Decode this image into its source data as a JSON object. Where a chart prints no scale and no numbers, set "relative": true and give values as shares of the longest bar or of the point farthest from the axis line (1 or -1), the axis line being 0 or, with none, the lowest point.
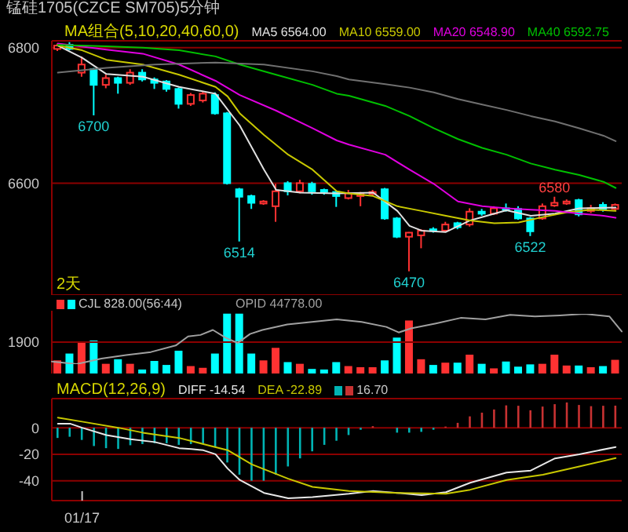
{
  "chart_data": [
    {
      "type": "candlestick",
      "title": "锰硅1705(CZCE SM705)5分钟",
      "legend_title": "MA组合(5,10,20,40,60,0)",
      "legend": "top",
      "grid": "y",
      "tick_labels": "y",
      "categories": [
        null,
        null,
        null,
        null,
        null,
        null,
        null,
        null,
        null,
        null,
        null,
        null,
        null,
        null,
        null,
        null,
        null,
        null,
        null,
        null,
        null,
        null,
        null,
        null,
        null,
        null,
        null,
        null,
        null,
        null,
        null,
        null,
        null,
        null,
        null,
        null,
        null,
        null,
        null,
        null,
        null,
        null,
        null,
        null,
        null,
        null,
        null
      ],
      "ylim": [
        6435,
        6810
      ],
      "yticks": [
        6600,
        6800
      ],
      "ohlc": [
        [
          6798,
          6806,
          6795,
          6803
        ],
        [
          6804,
          6808,
          6796,
          6798
        ],
        [
          6763,
          6787,
          6757,
          6775
        ],
        [
          6768,
          6770,
          6700,
          6745
        ],
        [
          6745,
          6760,
          6740,
          6755
        ],
        [
          6755,
          6757,
          6732,
          6748
        ],
        [
          6748,
          6768,
          6745,
          6763
        ],
        [
          6763,
          6768,
          6750,
          6753
        ],
        [
          6753,
          6756,
          6739,
          6748
        ],
        [
          6750,
          6752,
          6735,
          6739
        ],
        [
          6739,
          6741,
          6710,
          6717
        ],
        [
          6717,
          6733,
          6714,
          6730
        ],
        [
          6722,
          6736,
          6719,
          6732
        ],
        [
          6730,
          6734,
          6701,
          6703
        ],
        [
          6703,
          6705,
          6598,
          6600
        ],
        [
          6591,
          6593,
          6514,
          6580
        ],
        [
          6581,
          6583,
          6562,
          6571
        ],
        [
          6570,
          6575,
          6568,
          6573
        ],
        [
          6566,
          6599,
          6543,
          6588
        ],
        [
          6600,
          6603,
          6582,
          6588
        ],
        [
          6588,
          6605,
          6585,
          6600
        ],
        [
          6599,
          6602,
          6583,
          6588
        ],
        [
          6590,
          6592,
          6583,
          6587
        ],
        [
          6587,
          6589,
          6565,
          6581
        ],
        [
          6578,
          6590,
          6576,
          6585
        ],
        [
          6581,
          6587,
          6566,
          6585
        ],
        [
          6584,
          6590,
          6582,
          6587
        ],
        [
          6591,
          6593,
          6546,
          6548
        ],
        [
          6548,
          6550,
          6519,
          6521
        ],
        [
          6521,
          6528,
          6470,
          6527
        ],
        [
          6523,
          6532,
          6504,
          6530
        ],
        [
          6532,
          6535,
          6527,
          6530
        ],
        [
          6530,
          6543,
          6528,
          6539
        ],
        [
          6541,
          6543,
          6532,
          6535
        ],
        [
          6539,
          6563,
          6536,
          6558
        ],
        [
          6558,
          6562,
          6552,
          6555
        ],
        [
          6555,
          6566,
          6553,
          6563
        ],
        [
          6563,
          6570,
          6558,
          6561
        ],
        [
          6562,
          6566,
          6546,
          6548
        ],
        [
          6548,
          6550,
          6522,
          6529
        ],
        [
          6548,
          6570,
          6546,
          6566
        ],
        [
          6567,
          6580,
          6565,
          6571
        ],
        [
          6570,
          6576,
          6568,
          6573
        ],
        [
          6575,
          6577,
          6551,
          6554
        ],
        [
          6559,
          6568,
          6556,
          6563
        ],
        [
          6568,
          6572,
          6558,
          6562
        ],
        [
          6562,
          6570,
          6560,
          6568
        ]
      ],
      "colors": [
        "#ff3232",
        "#00ffff",
        "#ff3232",
        "#00ffff",
        "#ff3232",
        "#00ffff",
        "#ff3232",
        "#00ffff",
        "#00ffff",
        "#00ffff",
        "#00ffff",
        "#ff3232",
        "#ff3232",
        "#00ffff",
        "#00ffff",
        "#00ffff",
        "#00ffff",
        "#ff3232",
        "#ff3232",
        "#00ffff",
        "#ff3232",
        "#00ffff",
        "#00ffff",
        "#00ffff",
        "#ff3232",
        "#ff3232",
        "#ff3232",
        "#00ffff",
        "#00ffff",
        "#ff3232",
        "#ff3232",
        "#00ffff",
        "#ff3232",
        "#00ffff",
        "#ff3232",
        "#00ffff",
        "#ff3232",
        "#00ffff",
        "#00ffff",
        "#00ffff",
        "#ff3232",
        "#ff3232",
        "#ff3232",
        "#00ffff",
        "#ff3232",
        "#00ffff",
        "#ff3232"
      ],
      "series": [
        {
          "type": "line",
          "name": "MA5 6564.00",
          "color": "#e0e0e0",
          "values": [
            6803,
            null,
            6785,
            null,
            6761,
            null,
            null,
            6757,
            null,
            null,
            6742,
            null,
            null,
            6732,
            null,
            6685,
            null,
            6620,
            6590,
            null,
            6586,
            null,
            null,
            6585,
            null,
            null,
            6586,
            null,
            6559,
            6537,
            6530,
            null,
            6528,
            null,
            6545,
            null,
            6555,
            6560,
            null,
            6552,
            null,
            6555,
            null,
            6563,
            null,
            null,
            6564
          ]
        },
        {
          "type": "line",
          "name": "MA10 6559.00",
          "color": "#c8c800",
          "values": [
            6803,
            null,
            6796,
            null,
            6782,
            null,
            null,
            6775,
            null,
            null,
            6760,
            null,
            null,
            6742,
            6728,
            6703,
            null,
            6671,
            null,
            6642,
            null,
            6620,
            null,
            6588,
            6585,
            null,
            6581,
            null,
            6566,
            null,
            6559,
            null,
            6552,
            null,
            6545,
            null,
            6541,
            null,
            6542,
            null,
            6550,
            null,
            6557,
            null,
            6561,
            null,
            6559
          ]
        },
        {
          "type": "line",
          "name": "MA20 6548.90",
          "color": "#e000e0",
          "values": [
            6806,
            null,
            null,
            null,
            6797,
            null,
            null,
            6791,
            null,
            null,
            6775,
            null,
            null,
            6751,
            null,
            6730,
            null,
            null,
            6707,
            null,
            null,
            6681,
            null,
            6663,
            6657,
            null,
            null,
            6642,
            null,
            6620,
            null,
            6599,
            null,
            6573,
            null,
            6566,
            null,
            6563,
            null,
            6561,
            null,
            6559,
            null,
            6555,
            null,
            6552,
            6549
          ]
        },
        {
          "type": "line",
          "name": "MA40 6592.75",
          "color": "#00c000",
          "values": [
            6804,
            null,
            null,
            null,
            6802,
            null,
            null,
            6800,
            null,
            null,
            6796,
            null,
            null,
            6787,
            null,
            6775,
            null,
            null,
            6760,
            null,
            null,
            6745,
            null,
            6732,
            6729,
            null,
            null,
            6714,
            null,
            6699,
            null,
            6681,
            null,
            6665,
            null,
            6652,
            null,
            6642,
            null,
            6629,
            null,
            6620,
            null,
            6612,
            null,
            6602,
            6593
          ]
        },
        {
          "type": "line",
          "color": "#707070",
          "values": [
            6763,
            null,
            null,
            null,
            6770,
            null,
            null,
            null,
            6775,
            null,
            null,
            null,
            null,
            6778,
            null,
            null,
            null,
            6775,
            null,
            null,
            null,
            6765,
            null,
            6758,
            6753,
            null,
            null,
            6746,
            null,
            6741,
            null,
            6734,
            null,
            6724,
            null,
            6716,
            null,
            6708,
            null,
            6699,
            null,
            6691,
            null,
            6681,
            null,
            6670,
            6662
          ]
        }
      ],
      "annotations": [
        {
          "text": "6700",
          "y": 6700
        },
        {
          "text": "6514",
          "y": 6514
        },
        {
          "text": "6470",
          "y": 6470
        },
        {
          "text": "6522",
          "y": 6522
        },
        {
          "text": "6580",
          "y": 6580
        },
        "2天"
      ]
    },
    {
      "type": "bar",
      "legend": "top left",
      "tick_labels": "y",
      "ref_lines": [
        {
          "axis": "y",
          "value": 1900,
          "color": "#8b0000"
        }
      ],
      "categories": [
        null,
        null,
        null,
        null,
        null,
        null,
        null,
        null,
        null,
        null,
        null,
        null,
        null,
        null,
        null,
        null,
        null,
        null,
        null,
        null,
        null,
        null,
        null,
        null,
        null,
        null,
        null,
        null,
        null,
        null,
        null,
        null,
        null,
        null,
        null,
        null,
        null,
        null,
        null,
        null,
        null,
        null,
        null,
        null,
        null,
        null,
        null
      ],
      "ylim": [
        0,
        3800
      ],
      "yticks": [
        1900
      ],
      "series": [
        {
          "name": "CJL 828.00(56:44)",
          "colors": [
            "#ff3232",
            "#00ffff",
            "#ff3232",
            "#00ffff",
            "#ff3232",
            "#00ffff",
            "#ff3232",
            "#00ffff",
            "#00ffff",
            "#00ffff",
            "#00ffff",
            "#ff3232",
            "#ff3232",
            "#00ffff",
            "#00ffff",
            "#00ffff",
            "#00ffff",
            "#ff3232",
            "#ff3232",
            "#00ffff",
            "#ff3232",
            "#00ffff",
            "#00ffff",
            "#00ffff",
            "#ff3232",
            "#ff3232",
            "#ff3232",
            "#00ffff",
            "#00ffff",
            "#ff3232",
            "#ff3232",
            "#00ffff",
            "#ff3232",
            "#00ffff",
            "#ff3232",
            "#00ffff",
            "#ff3232",
            "#00ffff",
            "#00ffff",
            "#00ffff",
            "#ff3232",
            "#ff3232",
            "#ff3232",
            "#00ffff",
            "#ff3232",
            "#00ffff",
            "#ff3232"
          ],
          "values": [
            794,
            1208,
            1900,
            2000,
            587,
            863,
            587,
            242,
            759,
            518,
            1380,
            449,
            345,
            1208,
            3623,
            3623,
            1208,
            794,
            1553,
            690,
            587,
            276,
            242,
            690,
            449,
            380,
            380,
            794,
            2174,
            3209,
            863,
            518,
            656,
            656,
            1139,
            587,
            311,
            725,
            414,
            552,
            587,
            1139,
            483,
            483,
            380,
            449,
            828
          ]
        }
      ]
    },
    {
      "type": "line",
      "relative": true,
      "legend": "top left",
      "tick_labels": false,
      "categories": [
        null,
        null,
        null,
        null,
        null,
        null,
        null,
        null,
        null,
        null,
        null,
        null,
        null,
        null,
        null,
        null,
        null,
        null,
        null,
        null,
        null,
        null,
        null,
        null,
        null,
        null,
        null,
        null,
        null,
        null,
        null,
        null,
        null,
        null,
        null,
        null,
        null,
        null,
        null,
        null,
        null,
        null,
        null,
        null,
        null,
        null,
        null
      ],
      "series": [
        {
          "name": "OPID 44778.00",
          "color": "#a0a0a0",
          "values": [
            0.05,
            null,
            0,
            null,
            0.11,
            null,
            0.18,
            null,
            0.24,
            null,
            0.37,
            0.55,
            0.58,
            0.68,
            0.53,
            0.42,
            0.6,
            0.68,
            null,
            0.79,
            null,
            0.84,
            null,
            0.89,
            null,
            0.84,
            null,
            0.74,
            0.63,
            0.71,
            null,
            0.81,
            null,
            0.92,
            null,
            0.89,
            null,
            0.98,
            null,
            0.95,
            null,
            0.97,
            null,
            1,
            null,
            0.95,
            0.65
          ]
        }
      ]
    },
    {
      "type": "bar",
      "legend_title": "MACD(12,26,9)",
      "legend": "top left",
      "grid": "y",
      "categories": [
        null,
        null,
        "01/17",
        null,
        null,
        null,
        null,
        null,
        null,
        null,
        null,
        null,
        null,
        null,
        null,
        null,
        null,
        null,
        null,
        null,
        null,
        null,
        null,
        null,
        null,
        null,
        null,
        null,
        null,
        null,
        null,
        null,
        null,
        null,
        null,
        null,
        null,
        null,
        null,
        null,
        null,
        null,
        null,
        null,
        null,
        null,
        null
      ],
      "ylim": [
        -55,
        22
      ],
      "yticks": [
        -40,
        -20,
        0
      ],
      "series": [
        {
          "type": "line",
          "name": "DIFF -14.54",
          "color": "#e8e8e8",
          "values": [
            3.1,
            3.1,
            0,
            null,
            -5.5,
            null,
            -8.6,
            null,
            -10.8,
            null,
            -15.4,
            -16,
            -17,
            -20,
            -30.8,
            -39.4,
            null,
            -49.2,
            null,
            -53.2,
            null,
            -52.3,
            null,
            null,
            -49.8,
            null,
            -47.7,
            null,
            -49.2,
            null,
            -50.8,
            null,
            -48.6,
            null,
            -41.5,
            null,
            null,
            -33.8,
            null,
            -32.3,
            null,
            -23.1,
            null,
            -20,
            null,
            null,
            -14.54
          ]
        },
        {
          "type": "line",
          "name": "DEA -22.89",
          "color": "#c8c800",
          "values": [
            7.7,
            null,
            4.6,
            null,
            null,
            0,
            null,
            -3.7,
            null,
            null,
            -7.7,
            null,
            -12.3,
            null,
            -16.9,
            null,
            -27.7,
            null,
            null,
            -38.5,
            null,
            -44.6,
            null,
            null,
            -47.7,
            null,
            null,
            null,
            -49.2,
            null,
            null,
            null,
            -49.8,
            null,
            -46.8,
            null,
            null,
            -39.4,
            null,
            null,
            -35.4,
            null,
            null,
            -29.2,
            null,
            null,
            -22.89
          ]
        },
        {
          "type": "bar",
          "name": "16.70",
          "colors": [
            "#00b4b4",
            "#00b4b4",
            "#00b4b4",
            "#00b4b4",
            "#00b4b4",
            "#00b4b4",
            "#00b4b4",
            "#00b4b4",
            "#00b4b4",
            "#00b4b4",
            "#00b4b4",
            "#00b4b4",
            "#00b4b4",
            "#00b4b4",
            "#00b4b4",
            "#00b4b4",
            "#00b4b4",
            "#00b4b4",
            "#00b4b4",
            "#00b4b4",
            "#00b4b4",
            "#00b4b4",
            "#00b4b4",
            "#00b4b4",
            "#00b4b4",
            "#00b4b4",
            "#c83232",
            "#00b4b4",
            "#00b4b4",
            "#00b4b4",
            "#00b4b4",
            "#00b4b4",
            "#c83232",
            "#c83232",
            "#c83232",
            "#c83232",
            "#c83232",
            "#c83232",
            "#c83232",
            "#c83232",
            "#c83232",
            "#c83232",
            "#c83232",
            "#c83232",
            "#c83232",
            "#c83232",
            "#c83232"
          ],
          "values": [
            -7.7,
            -6.8,
            -9.2,
            -13.8,
            -15.4,
            -16,
            -13.2,
            -12.3,
            -11.7,
            -11.7,
            -12.9,
            -12.3,
            -12.3,
            -14.8,
            -26.2,
            -35.4,
            -40,
            -40,
            -35.4,
            -29.2,
            -23.1,
            -17.8,
            -12.9,
            -9.8,
            -5.5,
            -1.5,
            1.2,
            0,
            -3.7,
            -3.7,
            -3.1,
            -1.5,
            0.9,
            3.7,
            8.6,
            11.4,
            13.8,
            16.9,
            16.6,
            13.2,
            16,
            17.8,
            19.1,
            17.2,
            16.3,
            16.6,
            16.7
          ]
        }
      ]
    }
  ]
}
